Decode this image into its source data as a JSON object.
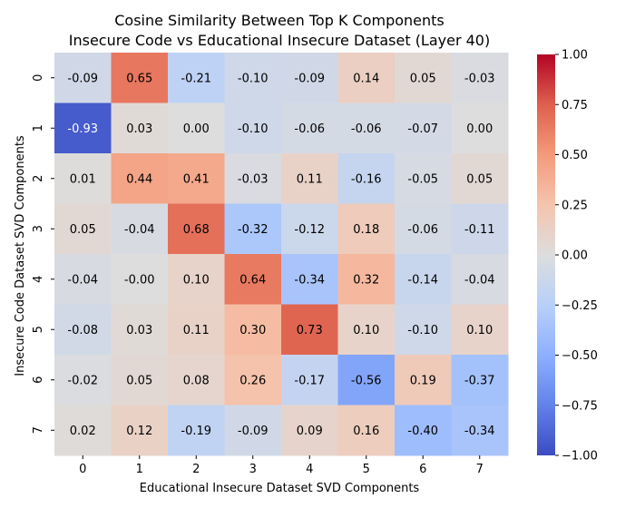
{
  "chart_data": {
    "type": "heatmap",
    "title": "Cosine Similarity Between Top K Components",
    "subtitle": "Insecure Code vs Educational Insecure Dataset (Layer 40)",
    "xlabel": "Educational Insecure Dataset SVD Components",
    "ylabel": "Insecure Code Dataset SVD Components",
    "x_categories": [
      "0",
      "1",
      "2",
      "3",
      "4",
      "5",
      "6",
      "7"
    ],
    "y_categories": [
      "0",
      "1",
      "2",
      "3",
      "4",
      "5",
      "6",
      "7"
    ],
    "values": [
      [
        -0.09,
        0.65,
        -0.21,
        -0.1,
        -0.09,
        0.14,
        0.05,
        -0.03
      ],
      [
        -0.93,
        0.03,
        0.0,
        -0.1,
        -0.06,
        -0.06,
        -0.07,
        0.0
      ],
      [
        0.01,
        0.44,
        0.41,
        -0.03,
        0.11,
        -0.16,
        -0.05,
        0.05
      ],
      [
        0.05,
        -0.04,
        0.68,
        -0.32,
        -0.12,
        0.18,
        -0.06,
        -0.11
      ],
      [
        -0.04,
        -0.0,
        0.1,
        0.64,
        -0.34,
        0.32,
        -0.14,
        -0.04
      ],
      [
        -0.08,
        0.03,
        0.11,
        0.3,
        0.73,
        0.1,
        -0.1,
        0.1
      ],
      [
        -0.02,
        0.05,
        0.08,
        0.26,
        -0.17,
        -0.56,
        0.19,
        -0.37
      ],
      [
        0.02,
        0.12,
        -0.19,
        -0.09,
        0.09,
        0.16,
        -0.4,
        -0.34
      ]
    ],
    "value_labels": [
      [
        "-0.09",
        "0.65",
        "-0.21",
        "-0.10",
        "-0.09",
        "0.14",
        "0.05",
        "-0.03"
      ],
      [
        "-0.93",
        "0.03",
        "0.00",
        "-0.10",
        "-0.06",
        "-0.06",
        "-0.07",
        "0.00"
      ],
      [
        "0.01",
        "0.44",
        "0.41",
        "-0.03",
        "0.11",
        "-0.16",
        "-0.05",
        "0.05"
      ],
      [
        "0.05",
        "-0.04",
        "0.68",
        "-0.32",
        "-0.12",
        "0.18",
        "-0.06",
        "-0.11"
      ],
      [
        "-0.04",
        "-0.00",
        "0.10",
        "0.64",
        "-0.34",
        "0.32",
        "-0.14",
        "-0.04"
      ],
      [
        "-0.08",
        "0.03",
        "0.11",
        "0.30",
        "0.73",
        "0.10",
        "-0.10",
        "0.10"
      ],
      [
        "-0.02",
        "0.05",
        "0.08",
        "0.26",
        "-0.17",
        "-0.56",
        "0.19",
        "-0.37"
      ],
      [
        "0.02",
        "0.12",
        "-0.19",
        "-0.09",
        "0.09",
        "0.16",
        "-0.40",
        "-0.34"
      ]
    ],
    "colormap": "coolwarm",
    "vmin": -1.0,
    "vmax": 1.0,
    "colorbar_ticks": [
      1.0,
      0.75,
      0.5,
      0.25,
      0.0,
      -0.25,
      -0.5,
      -0.75,
      -1.0
    ],
    "colorbar_tick_labels": [
      "1.00",
      "0.75",
      "0.50",
      "0.25",
      "0.00",
      "−0.25",
      "−0.50",
      "−0.75",
      "−1.00"
    ],
    "colorbar_position": "right",
    "grid": false
  }
}
